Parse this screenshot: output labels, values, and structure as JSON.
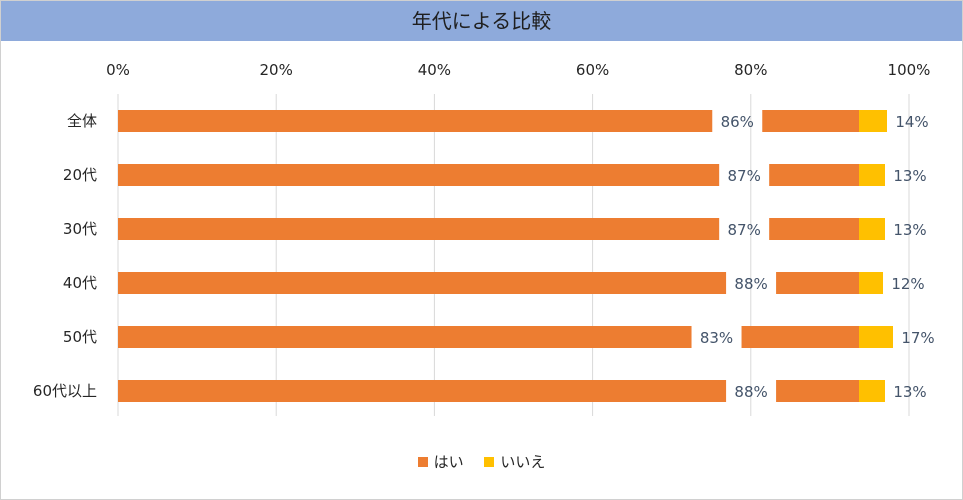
{
  "title": "年代による比較",
  "colors": {
    "yes": "#ed7d31",
    "no": "#ffc000",
    "grid": "#d9d9d9",
    "title_bg": "#8eaadb"
  },
  "chart_data": {
    "type": "bar",
    "orientation": "horizontal",
    "stacked": "percent",
    "title": "年代による比較",
    "categories": [
      "全体",
      "20代",
      "30代",
      "40代",
      "50代",
      "60代以上"
    ],
    "series": [
      {
        "name": "はい",
        "values": [
          86,
          87,
          87,
          88,
          83,
          88
        ],
        "labels": [
          "86%",
          "87%",
          "87%",
          "88%",
          "83%",
          "88%"
        ]
      },
      {
        "name": "いいえ",
        "values": [
          14,
          13,
          13,
          12,
          17,
          13
        ],
        "labels": [
          "14%",
          "13%",
          "13%",
          "12%",
          "17%",
          "13%"
        ]
      }
    ],
    "x_ticks": [
      "0%",
      "20%",
      "40%",
      "60%",
      "80%",
      "100%"
    ],
    "xlim": [
      0,
      100
    ],
    "grid": true,
    "legend_position": "bottom"
  }
}
